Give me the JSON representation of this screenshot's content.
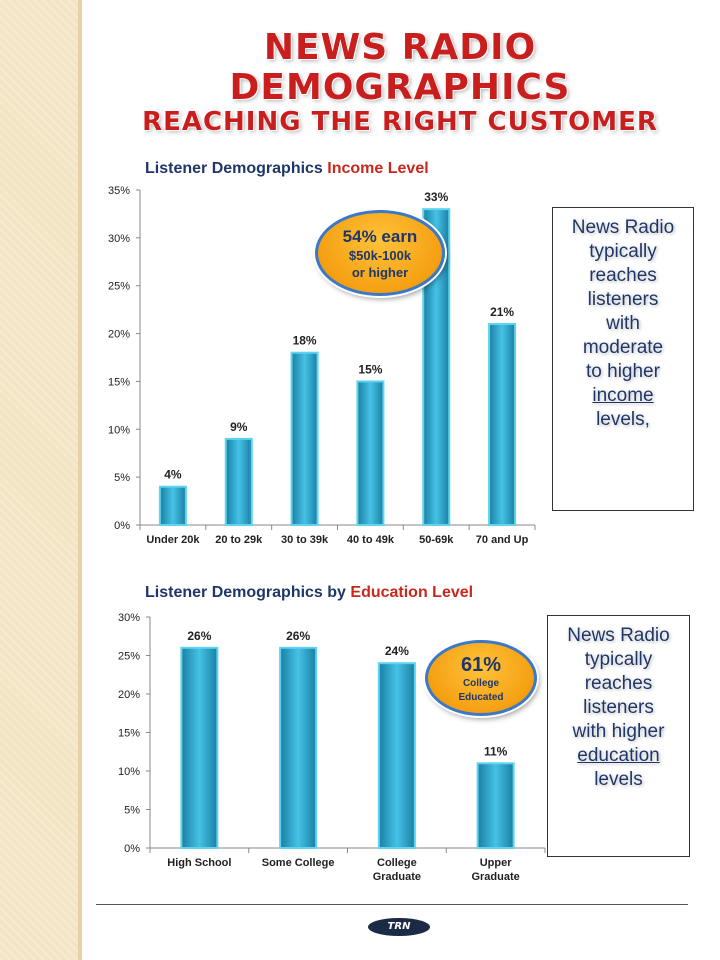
{
  "page": {
    "title_line1": "NEWS RADIO DEMOGRAPHICS",
    "title_line2": "REACHING THE RIGHT CUSTOMER",
    "logo_text": "TRN"
  },
  "income": {
    "subtitle_prefix": "Listener Demographics ",
    "subtitle_accent": "Income Level",
    "callout_lines": [
      "News Radio",
      "typically",
      "reaches",
      "listeners",
      "with",
      "moderate",
      "to higher",
      "income",
      "levels,"
    ],
    "badge_line1": "54% earn",
    "badge_line2": "$50k-100k",
    "badge_line3": "or higher"
  },
  "education": {
    "subtitle_prefix": "Listener Demographics by ",
    "subtitle_accent": "Education Level",
    "callout_lines": [
      "News Radio",
      "typically",
      "reaches",
      "listeners",
      "with higher",
      "education",
      "levels"
    ],
    "badge_line1": "61%",
    "badge_line2": "College",
    "badge_line3": "Educated"
  },
  "colors": {
    "bar": "#2aa0c8",
    "bar_dark": "#1a7fa3",
    "title": "#c81e1e",
    "text": "#1f3768",
    "badge": "#f5a012"
  },
  "chart_data": [
    {
      "type": "bar",
      "title": "Listener Demographics Income Level",
      "categories": [
        "Under 20k",
        "20 to 29k",
        "30 to 39k",
        "40 to 49k",
        "50-69k",
        "70 and Up"
      ],
      "values": [
        4,
        9,
        18,
        15,
        33,
        21
      ],
      "data_labels": [
        "4%",
        "9%",
        "18%",
        "15%",
        "33%",
        "21%"
      ],
      "yticks": [
        "0%",
        "5%",
        "10%",
        "15%",
        "20%",
        "25%",
        "30%",
        "35%"
      ],
      "ylim": [
        0,
        35
      ],
      "grid": false
    },
    {
      "type": "bar",
      "title": "Listener Demographics by Education Level",
      "categories": [
        "High School",
        "Some College",
        "College Graduate",
        "Upper Graduate"
      ],
      "values": [
        26,
        26,
        24,
        11
      ],
      "data_labels": [
        "26%",
        "26%",
        "24%",
        "11%"
      ],
      "yticks": [
        "0%",
        "5%",
        "10%",
        "15%",
        "20%",
        "25%",
        "30%"
      ],
      "ylim": [
        0,
        30
      ],
      "grid": false
    }
  ]
}
